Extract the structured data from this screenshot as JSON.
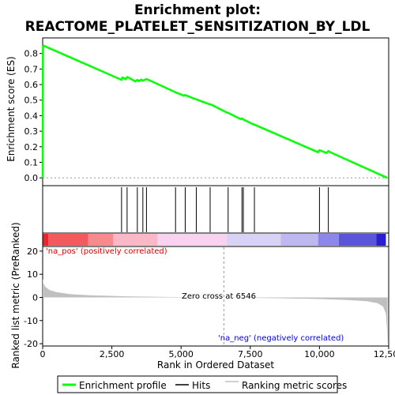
{
  "chart_data": {
    "type": "line",
    "title_line1": "Enrichment plot:",
    "title_line2": "REACTOME_PLATELET_SENSITIZATION_BY_LDL",
    "es_panel": {
      "ylabel": "Enrichment score (ES)",
      "ylim": [
        -0.05,
        0.9
      ],
      "yticks": [
        0.0,
        0.1,
        0.2,
        0.3,
        0.4,
        0.5,
        0.6,
        0.7,
        0.8
      ],
      "ytick_labels": [
        "0.0",
        "0.1",
        "0.2",
        "0.3",
        "0.4",
        "0.5",
        "0.6",
        "0.7",
        "0.8"
      ],
      "series": [
        {
          "name": "Enrichment profile",
          "color": "#00ff00",
          "x": [
            0,
            10,
            30,
            2850,
            2880,
            2950,
            3000,
            3050,
            3100,
            3350,
            3420,
            3480,
            3560,
            3620,
            3680,
            3750,
            3800,
            4800,
            5100,
            5150,
            5500,
            5550,
            6000,
            6100,
            6650,
            6700,
            7150,
            7200,
            7250,
            7600,
            7650,
            9950,
            10000,
            10250,
            10320,
            10350,
            12450
          ],
          "y": [
            0.0,
            0.84,
            0.85,
            0.63,
            0.645,
            0.64,
            0.635,
            0.648,
            0.645,
            0.62,
            0.63,
            0.622,
            0.632,
            0.625,
            0.63,
            0.635,
            0.632,
            0.55,
            0.528,
            0.532,
            0.508,
            0.505,
            0.475,
            0.47,
            0.42,
            0.418,
            0.378,
            0.382,
            0.375,
            0.345,
            0.342,
            0.165,
            0.178,
            0.16,
            0.172,
            0.168,
            0.0
          ]
        }
      ]
    },
    "hits": {
      "name": "Hits",
      "color": "#000000",
      "positions": [
        2850,
        3050,
        3420,
        3620,
        3750,
        4800,
        5150,
        5550,
        6050,
        6700,
        7200,
        7250,
        7650,
        10000,
        10320
      ]
    },
    "heat_strip": {
      "colors": [
        "#e8262b",
        "#f25a5e",
        "#f78a8e",
        "#fab8c7",
        "#f7d3ef",
        "#d8d2f5",
        "#bdb9f0",
        "#8c87e8",
        "#5b55d9",
        "#2a1fd0"
      ],
      "boundaries": [
        0,
        200,
        1650,
        2550,
        4150,
        6650,
        8600,
        9950,
        10700,
        12050,
        12400
      ]
    },
    "metric_panel": {
      "ylabel": "Ranked list metric (PreRanked)",
      "xlabel": "Rank in Ordered Dataset",
      "ylim": [
        -21,
        22
      ],
      "yticks": [
        -20,
        -10,
        0,
        10,
        20
      ],
      "ytick_labels": [
        "-20",
        "-10",
        "0",
        "10",
        "20"
      ],
      "series": [
        {
          "name": "Ranking metric scores",
          "color": "#c0c0c0",
          "x": [
            0,
            30,
            100,
            250,
            500,
            1000,
            1700,
            3000,
            4500,
            6546,
            8500,
            10000,
            11000,
            11700,
            12100,
            12300,
            12400,
            12440,
            12460
          ],
          "y": [
            8.0,
            6.0,
            4.5,
            3.2,
            2.3,
            1.4,
            0.9,
            0.45,
            0.2,
            0.0,
            -0.35,
            -0.7,
            -1.1,
            -1.6,
            -2.5,
            -4.0,
            -7.0,
            -14.0,
            -21.0
          ]
        }
      ],
      "annotations": {
        "pos": "'na_pos' (positively correlated)",
        "pos_color": "#cc0000",
        "neg": "'na_neg' (negatively correlated)",
        "neg_color": "#0000cc",
        "zero_cross": "Zero cross at 6546",
        "zero_cross_x": 6546
      }
    },
    "xaxis": {
      "xlim": [
        0,
        12500
      ],
      "xticks": [
        0,
        2500,
        5000,
        7500,
        10000,
        12500
      ],
      "xtick_labels": [
        "0",
        "2,500",
        "5,000",
        "7,500",
        "10,000",
        "12,500"
      ]
    },
    "legend": {
      "placement": "bottom",
      "items": [
        {
          "label": "Enrichment profile",
          "color": "#00ff00"
        },
        {
          "label": "Hits",
          "color": "#000000"
        },
        {
          "label": "Ranking metric scores",
          "color": "#c0c0c0"
        }
      ]
    }
  }
}
